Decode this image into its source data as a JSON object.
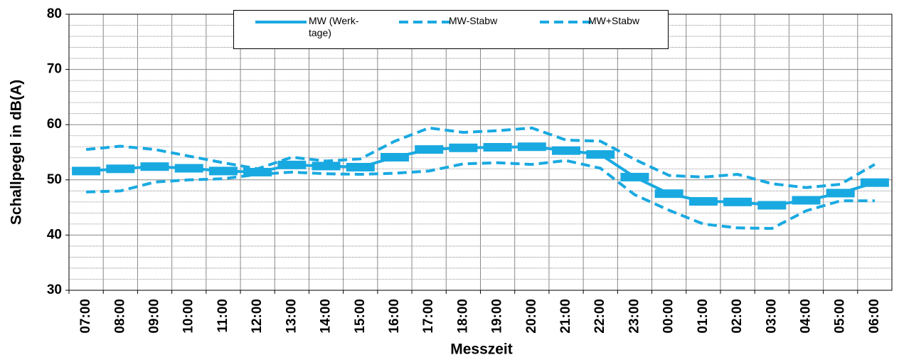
{
  "chart_data": {
    "type": "line",
    "x_label": "Messzeit",
    "y_label": "Schallpegel in dB(A)",
    "categories": [
      "07:00",
      "08:00",
      "09:00",
      "10:00",
      "11:00",
      "12:00",
      "13:00",
      "14:00",
      "15:00",
      "16:00",
      "17:00",
      "18:00",
      "19:00",
      "20:00",
      "21:00",
      "22:00",
      "23:00",
      "00:00",
      "01:00",
      "02:00",
      "03:00",
      "04:00",
      "05:00",
      "06:00"
    ],
    "series": [
      {
        "name": "MW (Werk-tage)",
        "color": "#19a9e1",
        "line_style": "solid",
        "marker": "dash",
        "values": [
          51.6,
          52.0,
          52.4,
          52.1,
          51.6,
          51.4,
          52.7,
          52.5,
          52.3,
          54.1,
          55.5,
          55.8,
          55.9,
          56.0,
          55.3,
          54.6,
          50.5,
          47.5,
          46.1,
          46.0,
          45.4,
          46.3,
          47.6,
          49.5
        ]
      },
      {
        "name": "MW-Stabw",
        "color": "#19a9e1",
        "line_style": "dashed",
        "values": [
          47.8,
          48.0,
          49.6,
          50.0,
          50.2,
          51.0,
          51.4,
          51.1,
          51.0,
          51.2,
          51.6,
          52.9,
          53.1,
          52.8,
          53.5,
          52.1,
          47.3,
          44.5,
          42.0,
          41.3,
          41.2,
          44.4,
          46.2,
          46.2
        ]
      },
      {
        "name": "MW+Stabw",
        "color": "#19a9e1",
        "line_style": "dashed",
        "values": [
          55.5,
          56.1,
          55.5,
          54.3,
          53.1,
          52.0,
          54.1,
          53.4,
          53.8,
          57.0,
          59.4,
          58.6,
          58.9,
          59.4,
          57.2,
          57.0,
          53.7,
          50.8,
          50.5,
          51.0,
          49.3,
          48.6,
          49.2,
          52.8
        ]
      }
    ],
    "ylim": [
      30,
      80
    ],
    "yticks": [
      30,
      40,
      50,
      60,
      70,
      80
    ],
    "minor_yticks": [
      32,
      34,
      36,
      38,
      42,
      44,
      46,
      48,
      52,
      54,
      56,
      58,
      62,
      64,
      66,
      68,
      72,
      74,
      76,
      78
    ],
    "grid": true
  }
}
